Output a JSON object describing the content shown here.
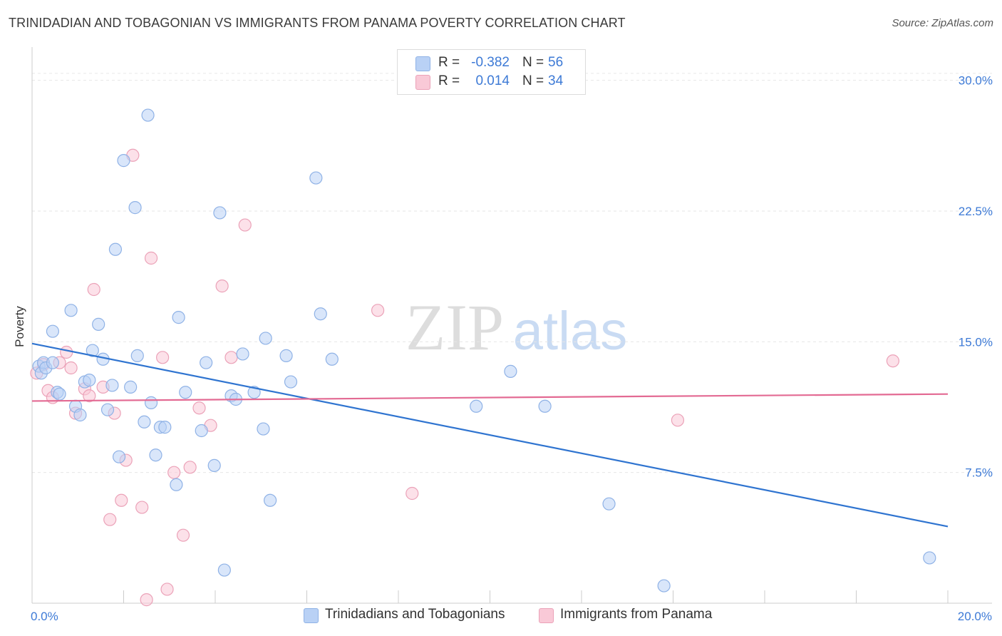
{
  "title": "TRINIDADIAN AND TOBAGONIAN VS IMMIGRANTS FROM PANAMA POVERTY CORRELATION CHART",
  "source": "Source: ZipAtlas.com",
  "watermark": {
    "zip": "ZIP",
    "atlas": "atlas"
  },
  "legend": {
    "series1": {
      "r_label": "R =",
      "r_value": "-0.382",
      "n_label": "N =",
      "n_value": "56"
    },
    "series2": {
      "r_label": "R =",
      "r_value": "0.014",
      "n_label": "N =",
      "n_value": "34"
    }
  },
  "colors": {
    "blue_fill": "#b9d1f5",
    "blue_stroke": "#8fb2e6",
    "blue_line": "#2f74d0",
    "pink_fill": "#f9c9d7",
    "pink_stroke": "#eba2b8",
    "pink_line": "#e36a93",
    "axis_text": "#3d7ad6",
    "grid": "#e6e6e6"
  },
  "chart_data": {
    "type": "scatter",
    "title": "TRINIDADIAN AND TOBAGONIAN VS IMMIGRANTS FROM PANAMA POVERTY CORRELATION CHART",
    "xlabel": "",
    "ylabel": "Poverty",
    "xlim": [
      0,
      20
    ],
    "ylim": [
      0,
      31.5
    ],
    "x_tick_labels": [
      {
        "value": 0,
        "label": "0.0%"
      },
      {
        "value": 20,
        "label": "20.0%"
      }
    ],
    "y_tick_labels": [
      {
        "value": 7.5,
        "label": "7.5%"
      },
      {
        "value": 15,
        "label": "15.0%"
      },
      {
        "value": 22.5,
        "label": "22.5%"
      },
      {
        "value": 30,
        "label": "30.0%"
      }
    ],
    "grid": "horizontal dashed",
    "series": [
      {
        "name": "Trinidadians and Tobagonians",
        "color": "blue",
        "points": [
          [
            0.15,
            13.6
          ],
          [
            0.2,
            13.2
          ],
          [
            0.25,
            13.8
          ],
          [
            0.3,
            13.5
          ],
          [
            0.45,
            13.8
          ],
          [
            0.55,
            12.1
          ],
          [
            0.6,
            12.0
          ],
          [
            0.85,
            16.8
          ],
          [
            0.45,
            15.6
          ],
          [
            0.95,
            11.3
          ],
          [
            1.05,
            10.8
          ],
          [
            1.15,
            12.7
          ],
          [
            1.25,
            12.8
          ],
          [
            1.32,
            14.5
          ],
          [
            1.45,
            16.0
          ],
          [
            1.55,
            14.0
          ],
          [
            1.65,
            11.1
          ],
          [
            1.75,
            12.5
          ],
          [
            1.82,
            20.3
          ],
          [
            1.9,
            8.4
          ],
          [
            2.0,
            25.4
          ],
          [
            2.15,
            12.4
          ],
          [
            2.25,
            22.7
          ],
          [
            2.3,
            14.2
          ],
          [
            2.45,
            10.4
          ],
          [
            2.53,
            28.0
          ],
          [
            2.6,
            11.5
          ],
          [
            2.7,
            8.5
          ],
          [
            2.8,
            10.1
          ],
          [
            2.9,
            10.1
          ],
          [
            3.15,
            6.8
          ],
          [
            3.2,
            16.4
          ],
          [
            3.35,
            12.1
          ],
          [
            3.7,
            9.9
          ],
          [
            3.8,
            13.8
          ],
          [
            3.98,
            7.9
          ],
          [
            4.1,
            22.4
          ],
          [
            4.2,
            1.9
          ],
          [
            4.35,
            11.9
          ],
          [
            4.45,
            11.7
          ],
          [
            4.6,
            14.3
          ],
          [
            4.85,
            12.1
          ],
          [
            5.05,
            10.0
          ],
          [
            5.1,
            15.2
          ],
          [
            5.2,
            5.9
          ],
          [
            5.55,
            14.2
          ],
          [
            5.65,
            12.7
          ],
          [
            6.2,
            24.4
          ],
          [
            6.3,
            16.6
          ],
          [
            6.55,
            14.0
          ],
          [
            9.7,
            11.3
          ],
          [
            10.45,
            13.3
          ],
          [
            11.2,
            11.3
          ],
          [
            12.6,
            5.7
          ],
          [
            13.8,
            1.0
          ],
          [
            19.6,
            2.6
          ]
        ]
      },
      {
        "name": "Immigrants from Panama",
        "color": "pink",
        "points": [
          [
            0.1,
            13.2
          ],
          [
            0.25,
            13.7
          ],
          [
            0.35,
            12.2
          ],
          [
            0.45,
            11.8
          ],
          [
            0.6,
            13.8
          ],
          [
            0.75,
            14.4
          ],
          [
            0.85,
            13.5
          ],
          [
            0.95,
            10.9
          ],
          [
            1.15,
            12.3
          ],
          [
            1.25,
            11.9
          ],
          [
            1.35,
            18.0
          ],
          [
            1.55,
            12.4
          ],
          [
            1.7,
            4.8
          ],
          [
            1.8,
            10.9
          ],
          [
            1.95,
            5.9
          ],
          [
            2.05,
            8.2
          ],
          [
            2.2,
            25.7
          ],
          [
            2.4,
            5.5
          ],
          [
            2.5,
            0.2
          ],
          [
            2.6,
            19.8
          ],
          [
            2.85,
            14.1
          ],
          [
            2.95,
            0.8
          ],
          [
            3.1,
            7.5
          ],
          [
            3.3,
            3.9
          ],
          [
            3.45,
            7.8
          ],
          [
            3.65,
            11.2
          ],
          [
            3.9,
            10.2
          ],
          [
            4.15,
            18.2
          ],
          [
            4.35,
            14.1
          ],
          [
            4.65,
            21.7
          ],
          [
            7.55,
            16.8
          ],
          [
            8.3,
            6.3
          ],
          [
            14.1,
            10.5
          ],
          [
            18.8,
            13.9
          ]
        ]
      }
    ],
    "trend_lines": [
      {
        "series": "Trinidadians and Tobagonians",
        "x": [
          0,
          20
        ],
        "y": [
          14.9,
          4.4
        ]
      },
      {
        "series": "Immigrants from Panama",
        "x": [
          0,
          20
        ],
        "y": [
          11.6,
          12.0
        ]
      }
    ]
  }
}
